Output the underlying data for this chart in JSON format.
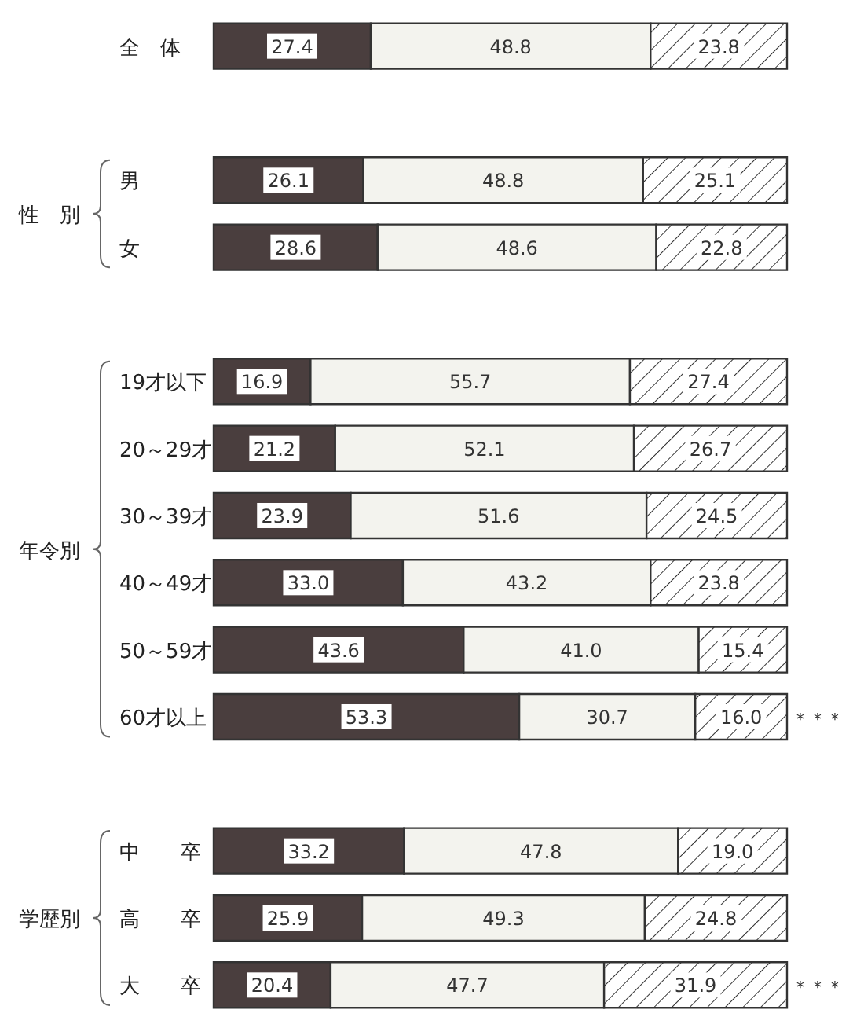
{
  "chart_data": {
    "type": "bar",
    "orientation": "horizontal",
    "stacked": true,
    "tick_labels": "y",
    "categories": [
      "全　体",
      null,
      "男",
      "女",
      null,
      "19才以下",
      "20～29才",
      "30～39才",
      "40～49才",
      "50～59才",
      "60才以上",
      null,
      "中　　卒",
      "高　　卒",
      "大　　卒"
    ],
    "series": [
      {
        "color": "#4a3e3e",
        "values": [
          27.4,
          null,
          26.1,
          28.6,
          null,
          16.9,
          21.2,
          23.9,
          33.0,
          43.6,
          53.3,
          null,
          33.2,
          25.9,
          20.4
        ],
        "value_labels": [
          "27.4",
          null,
          "26.1",
          "28.6",
          null,
          "16.9",
          "21.2",
          "23.9",
          "33.0",
          "43.6",
          "53.3",
          null,
          "33.2",
          "25.9",
          "20.4"
        ]
      },
      {
        "color": "#f3f3ee",
        "values": [
          48.8,
          null,
          48.8,
          48.6,
          null,
          55.7,
          52.1,
          51.6,
          43.2,
          41.0,
          30.7,
          null,
          47.8,
          49.3,
          47.7
        ],
        "value_labels": [
          "48.8",
          null,
          "48.8",
          "48.6",
          null,
          "55.7",
          "52.1",
          "51.6",
          "43.2",
          "41.0",
          "30.7",
          null,
          "47.8",
          "49.3",
          "47.7"
        ]
      },
      {
        "color": "#333333",
        "values": [
          23.8,
          null,
          25.1,
          22.8,
          null,
          27.4,
          26.7,
          24.5,
          23.8,
          15.4,
          16.0,
          null,
          19.0,
          24.8,
          31.9
        ],
        "value_labels": [
          "23.8",
          null,
          "25.1",
          "22.8",
          null,
          "27.4",
          "26.7",
          "24.5",
          "23.8",
          "15.4",
          "16.0",
          null,
          "19.0",
          "24.8",
          "31.9"
        ]
      }
    ],
    "annotations": [
      "性　別",
      "年令別",
      "学歴別",
      {
        "text": "＊＊＊",
        "x": 100,
        "y": "60才以上"
      },
      {
        "text": "＊＊＊",
        "x": 100,
        "y": "大　　卒"
      }
    ]
  }
}
